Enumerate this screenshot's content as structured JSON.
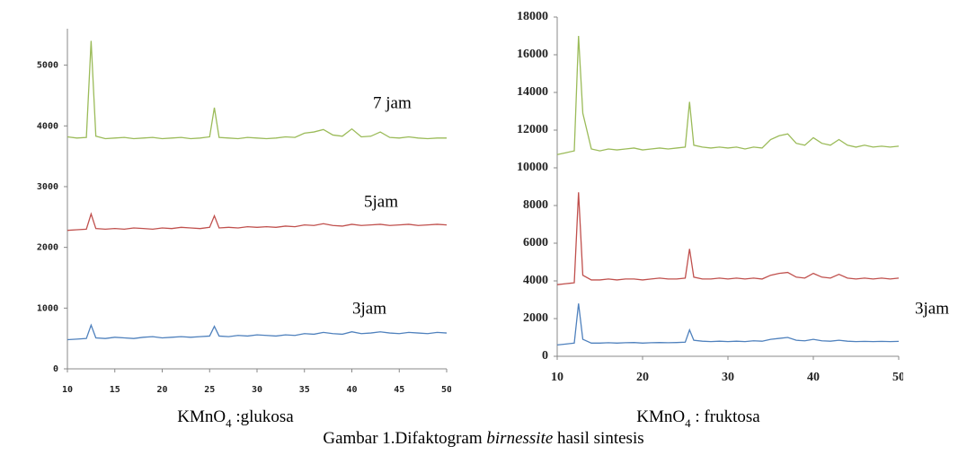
{
  "chart_data": [
    {
      "type": "line",
      "x": [
        10,
        11,
        12,
        12.5,
        13,
        14,
        15,
        16,
        17,
        18,
        19,
        20,
        21,
        22,
        23,
        24,
        25,
        25.5,
        26,
        27,
        28,
        29,
        30,
        31,
        32,
        33,
        34,
        35,
        36,
        37,
        38,
        39,
        40,
        41,
        42,
        43,
        44,
        45,
        46,
        47,
        48,
        49,
        50
      ],
      "series": [
        {
          "name": "7 jam",
          "color": "#9bbb59",
          "values": [
            3820,
            3800,
            3810,
            5400,
            3830,
            3790,
            3800,
            3810,
            3790,
            3800,
            3810,
            3790,
            3800,
            3810,
            3790,
            3800,
            3820,
            4300,
            3810,
            3800,
            3790,
            3810,
            3800,
            3790,
            3800,
            3820,
            3810,
            3880,
            3900,
            3940,
            3850,
            3830,
            3950,
            3820,
            3830,
            3900,
            3810,
            3800,
            3820,
            3800,
            3790,
            3800,
            3800
          ]
        },
        {
          "name": "5jam",
          "color": "#c0504d",
          "values": [
            2280,
            2290,
            2300,
            2550,
            2310,
            2300,
            2310,
            2300,
            2320,
            2310,
            2300,
            2320,
            2310,
            2330,
            2320,
            2310,
            2330,
            2520,
            2320,
            2330,
            2320,
            2340,
            2330,
            2340,
            2330,
            2350,
            2340,
            2370,
            2360,
            2390,
            2360,
            2350,
            2380,
            2360,
            2370,
            2380,
            2360,
            2370,
            2380,
            2360,
            2370,
            2380,
            2370
          ]
        },
        {
          "name": "3jam",
          "color": "#4f81bd",
          "values": [
            480,
            490,
            500,
            720,
            510,
            500,
            520,
            510,
            500,
            520,
            530,
            510,
            520,
            530,
            520,
            530,
            540,
            700,
            540,
            530,
            550,
            540,
            560,
            550,
            540,
            560,
            550,
            580,
            570,
            600,
            580,
            570,
            610,
            580,
            590,
            610,
            590,
            580,
            600,
            590,
            580,
            600,
            590
          ]
        }
      ],
      "xlim": [
        10,
        50
      ],
      "ylim": [
        0,
        5600
      ],
      "xticks": [
        10,
        15,
        20,
        25,
        30,
        35,
        40,
        45,
        50
      ],
      "yticks": [
        0,
        1000,
        2000,
        3000,
        4000,
        5000
      ],
      "xlabel": [
        "KMnO",
        "4",
        " :glukosa"
      ]
    },
    {
      "type": "line",
      "x": [
        10,
        11,
        12,
        12.5,
        13,
        14,
        15,
        16,
        17,
        18,
        19,
        20,
        21,
        22,
        23,
        24,
        25,
        25.5,
        26,
        27,
        28,
        29,
        30,
        31,
        32,
        33,
        34,
        35,
        36,
        37,
        38,
        39,
        40,
        41,
        42,
        43,
        44,
        45,
        46,
        47,
        48,
        49,
        50
      ],
      "series": [
        {
          "color": "#9bbb59",
          "values": [
            10700,
            10800,
            10900,
            17000,
            12900,
            11000,
            10900,
            11000,
            10950,
            11000,
            11050,
            10950,
            11000,
            11050,
            11000,
            11050,
            11100,
            13500,
            11200,
            11100,
            11050,
            11100,
            11050,
            11100,
            11000,
            11100,
            11050,
            11500,
            11700,
            11800,
            11300,
            11200,
            11600,
            11300,
            11200,
            11500,
            11200,
            11100,
            11200,
            11100,
            11150,
            11100,
            11150
          ]
        },
        {
          "color": "#c0504d",
          "values": [
            3800,
            3850,
            3900,
            8700,
            4300,
            4050,
            4050,
            4100,
            4050,
            4100,
            4100,
            4050,
            4100,
            4150,
            4100,
            4100,
            4150,
            5700,
            4200,
            4100,
            4100,
            4150,
            4100,
            4150,
            4100,
            4150,
            4100,
            4300,
            4400,
            4450,
            4200,
            4150,
            4400,
            4200,
            4150,
            4350,
            4150,
            4100,
            4150,
            4100,
            4150,
            4100,
            4150
          ]
        },
        {
          "name": "3jam",
          "color": "#4f81bd",
          "values": [
            600,
            650,
            700,
            2800,
            900,
            700,
            700,
            720,
            700,
            720,
            730,
            700,
            720,
            730,
            720,
            730,
            750,
            1400,
            850,
            800,
            780,
            800,
            780,
            800,
            780,
            820,
            800,
            900,
            950,
            1000,
            850,
            820,
            900,
            820,
            800,
            850,
            800,
            780,
            790,
            780,
            790,
            780,
            790
          ]
        }
      ],
      "xlim": [
        10,
        50
      ],
      "ylim": [
        0,
        18000
      ],
      "xticks": [
        10,
        20,
        30,
        40,
        50
      ],
      "yticks": [
        0,
        2000,
        4000,
        6000,
        8000,
        10000,
        12000,
        14000,
        16000,
        18000
      ],
      "xlabel": [
        "KMnO",
        "4",
        " : fruktosa"
      ]
    }
  ],
  "caption": [
    "Gambar 1.Difaktogram ",
    "birnessite",
    " hasil sintesis"
  ]
}
